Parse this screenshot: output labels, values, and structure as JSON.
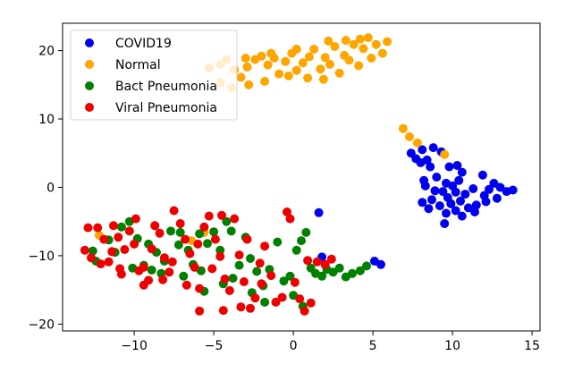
{
  "chart_data": {
    "type": "scatter",
    "title": "",
    "xlabel": "",
    "ylabel": "",
    "xlim": [
      -14.5,
      15.5
    ],
    "ylim": [
      -21,
      24
    ],
    "xticks": [
      -10,
      -5,
      0,
      5,
      10,
      15
    ],
    "yticks": [
      -20,
      -10,
      0,
      10,
      20
    ],
    "xtick_labels": [
      "−10",
      "−5",
      "0",
      "5",
      "10",
      "15"
    ],
    "ytick_labels": [
      "−20",
      "−10",
      "0",
      "10",
      "20"
    ],
    "grid": false,
    "legend_placement": "top-left",
    "series": [
      {
        "name": "COVID19",
        "color": "#0000ee",
        "points": [
          [
            7.4,
            5.0
          ],
          [
            7.7,
            4.2
          ],
          [
            8.1,
            5.5
          ],
          [
            8.4,
            4.0
          ],
          [
            8.8,
            5.8
          ],
          [
            8.6,
            3.0
          ],
          [
            8.0,
            3.6
          ],
          [
            9.3,
            5.2
          ],
          [
            8.2,
            1.0
          ],
          [
            9.0,
            1.5
          ],
          [
            9.6,
            0.6
          ],
          [
            8.3,
            0.2
          ],
          [
            8.9,
            -0.5
          ],
          [
            9.4,
            -0.6
          ],
          [
            10.0,
            0.2
          ],
          [
            10.2,
            -0.7
          ],
          [
            9.7,
            -1.5
          ],
          [
            8.7,
            -1.8
          ],
          [
            9.2,
            -2.7
          ],
          [
            9.9,
            -2.4
          ],
          [
            10.5,
            -2.0
          ],
          [
            10.8,
            -1.0
          ],
          [
            11.3,
            -0.2
          ],
          [
            10.4,
            1.0
          ],
          [
            10.6,
            2.2
          ],
          [
            9.8,
            3.0
          ],
          [
            10.3,
            3.2
          ],
          [
            11.0,
            -3.0
          ],
          [
            11.5,
            -2.6
          ],
          [
            10.2,
            -3.4
          ],
          [
            9.6,
            -3.8
          ],
          [
            8.5,
            -3.1
          ],
          [
            8.1,
            -2.2
          ],
          [
            9.5,
            -5.3
          ],
          [
            10.6,
            -4.2
          ],
          [
            12.0,
            -1.2
          ],
          [
            12.3,
            -0.3
          ],
          [
            12.6,
            0.6
          ],
          [
            12.8,
            -1.6
          ],
          [
            13.0,
            0.0
          ],
          [
            13.4,
            -0.6
          ],
          [
            13.8,
            -0.4
          ],
          [
            11.9,
            1.8
          ],
          [
            12.1,
            -2.1
          ],
          [
            11.4,
            -3.6
          ],
          [
            1.6,
            -3.7
          ],
          [
            1.8,
            -10.2
          ],
          [
            5.1,
            -10.8
          ],
          [
            5.5,
            -11.3
          ]
        ]
      },
      {
        "name": "Normal",
        "color": "#ffa500",
        "points": [
          [
            -5.3,
            17.5
          ],
          [
            -4.6,
            18.0
          ],
          [
            -4.2,
            18.7
          ],
          [
            -3.7,
            17.2
          ],
          [
            -3.3,
            16.1
          ],
          [
            -2.9,
            17.6
          ],
          [
            -2.4,
            18.7
          ],
          [
            -2.0,
            19.2
          ],
          [
            -1.6,
            17.9
          ],
          [
            -1.2,
            18.9
          ],
          [
            -0.9,
            16.6
          ],
          [
            -0.5,
            18.4
          ],
          [
            -0.1,
            19.6
          ],
          [
            0.2,
            17.1
          ],
          [
            0.6,
            18.2
          ],
          [
            1.0,
            19.1
          ],
          [
            1.3,
            20.2
          ],
          [
            1.7,
            17.3
          ],
          [
            2.0,
            19.0
          ],
          [
            2.3,
            18.0
          ],
          [
            2.6,
            20.6
          ],
          [
            2.9,
            16.7
          ],
          [
            3.2,
            19.3
          ],
          [
            3.5,
            18.6
          ],
          [
            3.8,
            20.9
          ],
          [
            4.1,
            17.8
          ],
          [
            4.4,
            20.3
          ],
          [
            4.7,
            21.9
          ],
          [
            4.9,
            18.9
          ],
          [
            5.2,
            20.9
          ],
          [
            5.6,
            19.6
          ],
          [
            5.9,
            21.3
          ],
          [
            -2.8,
            15.0
          ],
          [
            -3.9,
            14.6
          ],
          [
            -1.8,
            15.5
          ],
          [
            -0.3,
            16.3
          ],
          [
            1.9,
            15.8
          ],
          [
            0.9,
            16.0
          ],
          [
            -4.6,
            15.3
          ],
          [
            -1.4,
            19.6
          ],
          [
            0.2,
            20.2
          ],
          [
            2.2,
            21.4
          ],
          [
            3.3,
            21.5
          ],
          [
            4.2,
            21.7
          ],
          [
            -3.0,
            18.9
          ],
          [
            6.9,
            8.6
          ],
          [
            7.3,
            7.4
          ],
          [
            7.8,
            6.5
          ],
          [
            9.5,
            4.8
          ],
          [
            -6.4,
            -7.8
          ],
          [
            -12.2,
            -7.0
          ],
          [
            -5.6,
            -6.6
          ]
        ]
      },
      {
        "name": "Bact Pneumonia",
        "color": "#008000",
        "points": [
          [
            -12.4,
            -10.8
          ],
          [
            -11.2,
            -9.5
          ],
          [
            -10.8,
            -5.8
          ],
          [
            -10.3,
            -5.0
          ],
          [
            -9.8,
            -7.5
          ],
          [
            -9.1,
            -8.3
          ],
          [
            -8.6,
            -9.5
          ],
          [
            -8.1,
            -10.8
          ],
          [
            -7.7,
            -6.4
          ],
          [
            -7.2,
            -8.4
          ],
          [
            -6.6,
            -9.2
          ],
          [
            -6.3,
            -11.3
          ],
          [
            -5.8,
            -12.2
          ],
          [
            -5.4,
            -8.2
          ],
          [
            -5.0,
            -6.5
          ],
          [
            -4.6,
            -9.2
          ],
          [
            -4.2,
            -5.0
          ],
          [
            -3.8,
            -13.3
          ],
          [
            -3.4,
            -11.4
          ],
          [
            -3.0,
            -7.3
          ],
          [
            -2.7,
            -10.4
          ],
          [
            -2.3,
            -12.3
          ],
          [
            -1.9,
            -14.4
          ],
          [
            -1.5,
            -12.0
          ],
          [
            -1.0,
            -8.0
          ],
          [
            -0.6,
            -13.7
          ],
          [
            -0.2,
            -13.0
          ],
          [
            0.2,
            -9.2
          ],
          [
            0.5,
            -7.8
          ],
          [
            0.8,
            -6.6
          ],
          [
            1.1,
            -11.8
          ],
          [
            1.4,
            -12.6
          ],
          [
            1.8,
            -13.0
          ],
          [
            2.1,
            -12.0
          ],
          [
            2.5,
            -12.4
          ],
          [
            2.9,
            -11.8
          ],
          [
            3.3,
            -13.1
          ],
          [
            3.7,
            -12.6
          ],
          [
            4.2,
            -12.2
          ],
          [
            4.6,
            -11.5
          ],
          [
            -11.6,
            -7.7
          ],
          [
            -9.4,
            -11.4
          ],
          [
            -8.3,
            -12.6
          ],
          [
            -6.9,
            -13.0
          ],
          [
            -5.6,
            -15.2
          ],
          [
            -4.4,
            -14.1
          ],
          [
            -2.6,
            -15.4
          ],
          [
            -1.8,
            -16.8
          ],
          [
            -3.9,
            -6.4
          ],
          [
            -7.1,
            -6.6
          ],
          [
            -12.6,
            -9.3
          ],
          [
            -10.1,
            -11.8
          ],
          [
            -8.9,
            -12.1
          ],
          [
            -5.9,
            -6.8
          ],
          [
            0.0,
            -15.8
          ],
          [
            0.6,
            -17.4
          ]
        ]
      },
      {
        "name": "Viral Pneumonia",
        "color": "#ee0000",
        "points": [
          [
            -13.1,
            -9.2
          ],
          [
            -12.7,
            -10.3
          ],
          [
            -12.3,
            -5.9
          ],
          [
            -11.9,
            -7.6
          ],
          [
            -11.6,
            -10.9
          ],
          [
            -11.3,
            -5.6
          ],
          [
            -10.9,
            -11.9
          ],
          [
            -10.6,
            -9.1
          ],
          [
            -10.3,
            -6.4
          ],
          [
            -10.0,
            -8.3
          ],
          [
            -9.7,
            -12.2
          ],
          [
            -9.4,
            -14.3
          ],
          [
            -9.1,
            -13.6
          ],
          [
            -8.7,
            -5.6
          ],
          [
            -8.4,
            -6.7
          ],
          [
            -8.1,
            -10.3
          ],
          [
            -7.8,
            -12.4
          ],
          [
            -7.5,
            -3.4
          ],
          [
            -7.1,
            -5.3
          ],
          [
            -6.8,
            -7.6
          ],
          [
            -6.5,
            -9.7
          ],
          [
            -6.2,
            -11.7
          ],
          [
            -5.9,
            -14.8
          ],
          [
            -5.6,
            -5.8
          ],
          [
            -5.3,
            -4.2
          ],
          [
            -4.9,
            -7.6
          ],
          [
            -4.6,
            -10.1
          ],
          [
            -4.3,
            -13.4
          ],
          [
            -4.0,
            -15.1
          ],
          [
            -3.7,
            -4.6
          ],
          [
            -3.4,
            -9.9
          ],
          [
            -3.1,
            -13.8
          ],
          [
            -2.7,
            -17.7
          ],
          [
            -2.4,
            -16.2
          ],
          [
            -2.1,
            -11.1
          ],
          [
            -1.8,
            -8.6
          ],
          [
            -1.4,
            -12.9
          ],
          [
            -1.1,
            -16.8
          ],
          [
            -0.7,
            -16.1
          ],
          [
            -0.4,
            -3.6
          ],
          [
            -0.2,
            -4.6
          ],
          [
            0.1,
            -13.9
          ],
          [
            0.4,
            -16.3
          ],
          [
            0.7,
            -18.1
          ],
          [
            0.9,
            -10.7
          ],
          [
            1.1,
            -16.9
          ],
          [
            1.5,
            -10.9
          ],
          [
            2.0,
            -11.3
          ],
          [
            2.4,
            -10.5
          ],
          [
            -12.9,
            -5.9
          ],
          [
            -11.0,
            -7.3
          ],
          [
            -9.9,
            -4.6
          ],
          [
            -8.9,
            -9.0
          ],
          [
            -7.6,
            -10.9
          ],
          [
            -6.0,
            -8.3
          ],
          [
            -5.1,
            -11.9
          ],
          [
            -3.3,
            -17.5
          ],
          [
            -2.0,
            -14.1
          ],
          [
            -9.4,
            -11.7
          ],
          [
            -10.8,
            -12.7
          ],
          [
            -4.5,
            -4.1
          ],
          [
            -2.9,
            -7.6
          ],
          [
            -12.1,
            -11.2
          ],
          [
            -11.4,
            -9.4
          ],
          [
            -8.2,
            -13.5
          ],
          [
            -6.7,
            -14.3
          ],
          [
            -5.9,
            -18.1
          ],
          [
            -4.4,
            -18.0
          ]
        ]
      }
    ]
  }
}
